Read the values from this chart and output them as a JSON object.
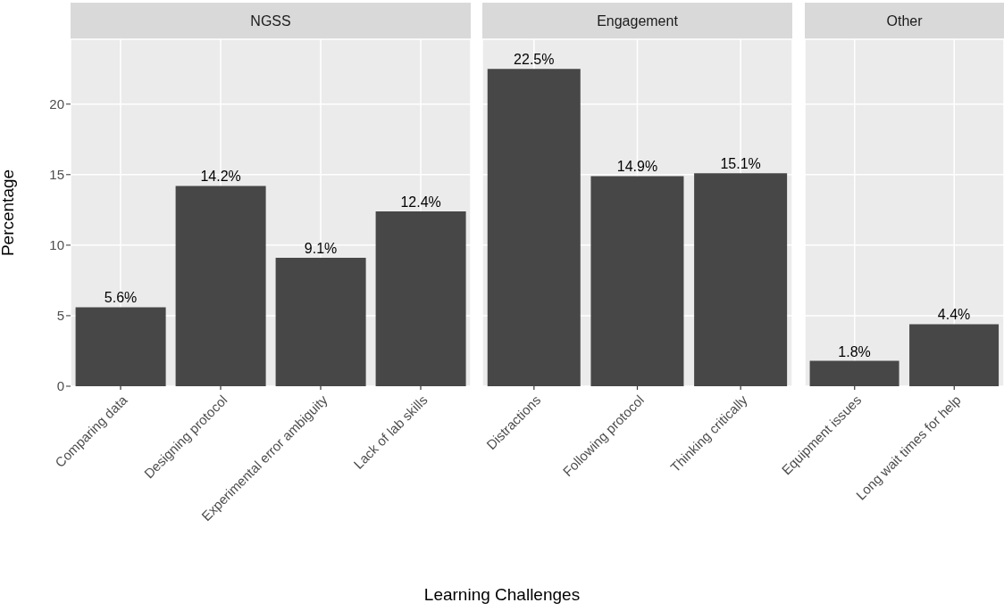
{
  "chart_data": [
    {
      "type": "bar",
      "title": "NGSS",
      "ylabel": "Percentage",
      "categories": [
        "Comparing data",
        "Designing protocol",
        "Experimental error ambiguity",
        "Lack of lab skills"
      ],
      "values": [
        5.6,
        14.2,
        9.1,
        12.4
      ],
      "value_labels": [
        "5.6%",
        "14.2%",
        "9.1%",
        "12.4%"
      ],
      "color": "#474747",
      "ylim": [
        0,
        24.6
      ],
      "yticks": [
        0,
        5,
        10,
        15,
        20
      ],
      "grid": true
    },
    {
      "type": "bar",
      "title": "Engagement",
      "xlabel": "Learning Challenges",
      "categories": [
        "Distractions",
        "Following protocol",
        "Thinking critically"
      ],
      "values": [
        22.5,
        14.9,
        15.1
      ],
      "value_labels": [
        "22.5%",
        "14.9%",
        "15.1%"
      ],
      "color": "#474747",
      "ylim": [
        0,
        24.6
      ],
      "yticks": [
        0,
        5,
        10,
        15,
        20
      ],
      "grid": true,
      "tick_labels": "x"
    },
    {
      "type": "bar",
      "title": "Other",
      "categories": [
        "Equipment issues",
        "Long wait times for help"
      ],
      "values": [
        1.8,
        4.4
      ],
      "value_labels": [
        "1.8%",
        "4.4%"
      ],
      "color": "#474747",
      "ylim": [
        0,
        24.6
      ],
      "yticks": [
        0,
        5,
        10,
        15,
        20
      ],
      "grid": true,
      "tick_labels": "x"
    }
  ]
}
